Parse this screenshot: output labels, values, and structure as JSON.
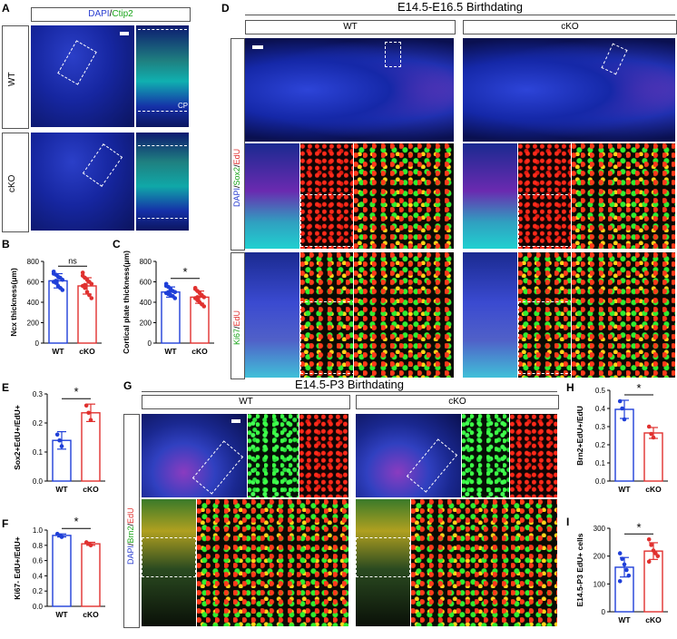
{
  "panels": {
    "A": {
      "label": "A",
      "header_dapi": "DAPI",
      "header_sep": "/",
      "header_ctip2": "Ctip2",
      "row1": "WT",
      "row2": "cKO",
      "cp": "CP"
    },
    "D": {
      "label": "D",
      "title": "E14.5-E16.5 Birthdating",
      "col1": "WT",
      "col2": "cKO",
      "row1_dapi": "DAPI",
      "row1_sox2": "Sox2",
      "row1_edu": "EdU",
      "row2_ki67": "Ki67",
      "row2_edu": "EdU",
      "sep": "/"
    },
    "G": {
      "label": "G",
      "title": "E14.5-P3 Birthdating",
      "col1": "WT",
      "col2": "cKO",
      "row_dapi": "DAPI",
      "row_brn2": "Brn2",
      "row_edu": "EdU",
      "sep": "/"
    }
  },
  "colors": {
    "wt": "#1f3fd8",
    "cko": "#e0312f",
    "green_text": "#1aa51a",
    "red_text": "#e0312f",
    "blue_text": "#2b3fd0"
  },
  "chart_data": [
    {
      "panel": "B",
      "type": "bar",
      "categories": [
        "WT",
        "cKO"
      ],
      "values": [
        610,
        560
      ],
      "errors": [
        70,
        80
      ],
      "ylabel": "Ncx thickness(μm)",
      "ylim": [
        0,
        800
      ],
      "yticks": [
        0,
        200,
        400,
        600,
        800
      ],
      "significance": "ns",
      "points": [
        [
          680,
          670,
          650,
          640,
          620,
          600,
          590,
          560,
          540,
          520,
          700,
          610
        ],
        [
          660,
          640,
          620,
          600,
          580,
          560,
          540,
          500,
          470,
          440,
          690,
          570
        ]
      ]
    },
    {
      "panel": "C",
      "type": "bar",
      "categories": [
        "WT",
        "cKO"
      ],
      "values": [
        500,
        450
      ],
      "errors": [
        50,
        60
      ],
      "ylabel": "Cortical plate thickness(μm)",
      "ylim": [
        0,
        800
      ],
      "yticks": [
        0,
        200,
        400,
        600,
        800
      ],
      "significance": "*",
      "points": [
        [
          560,
          550,
          530,
          510,
          500,
          490,
          480,
          470,
          460,
          440,
          580,
          500
        ],
        [
          530,
          510,
          490,
          470,
          450,
          440,
          420,
          400,
          380,
          360,
          540,
          450
        ]
      ]
    },
    {
      "panel": "E",
      "type": "bar",
      "categories": [
        "WT",
        "cKO"
      ],
      "values": [
        0.14,
        0.235
      ],
      "errors": [
        0.03,
        0.03
      ],
      "ylabel": "Sox2+EdU+/EdU+",
      "ylim": [
        0,
        0.3
      ],
      "yticks": [
        0.0,
        0.1,
        0.2,
        0.3
      ],
      "significance": "*",
      "points": [
        [
          0.16,
          0.14,
          0.12
        ],
        [
          0.26,
          0.235,
          0.21
        ]
      ]
    },
    {
      "panel": "F",
      "type": "bar",
      "categories": [
        "WT",
        "cKO"
      ],
      "values": [
        0.93,
        0.82
      ],
      "errors": [
        0.02,
        0.02
      ],
      "ylabel": "Ki67- EdU+/EdU+",
      "ylim": [
        0,
        1.0
      ],
      "yticks": [
        0.0,
        0.2,
        0.4,
        0.6,
        0.8,
        1.0
      ],
      "significance": "*",
      "points": [
        [
          0.95,
          0.93,
          0.91
        ],
        [
          0.84,
          0.82,
          0.8
        ]
      ]
    },
    {
      "panel": "H",
      "type": "bar",
      "categories": [
        "WT",
        "cKO"
      ],
      "values": [
        0.395,
        0.265
      ],
      "errors": [
        0.05,
        0.03
      ],
      "ylabel": "Brn2+EdU+/EdU",
      "ylim": [
        0,
        0.5
      ],
      "yticks": [
        0.0,
        0.1,
        0.2,
        0.3,
        0.4,
        0.5
      ],
      "significance": "*",
      "points": [
        [
          0.44,
          0.4,
          0.34
        ],
        [
          0.3,
          0.26,
          0.24
        ]
      ]
    },
    {
      "panel": "I",
      "type": "bar",
      "categories": [
        "WT",
        "cKO"
      ],
      "values": [
        160,
        218
      ],
      "errors": [
        35,
        30
      ],
      "ylabel": "E14.5-P3 EdU+ cells",
      "ylim": [
        0,
        300
      ],
      "yticks": [
        0,
        100,
        200,
        300
      ],
      "significance": "*",
      "points": [
        [
          210,
          190,
          170,
          150,
          130,
          110
        ],
        [
          260,
          240,
          220,
          210,
          200,
          180
        ]
      ]
    }
  ]
}
